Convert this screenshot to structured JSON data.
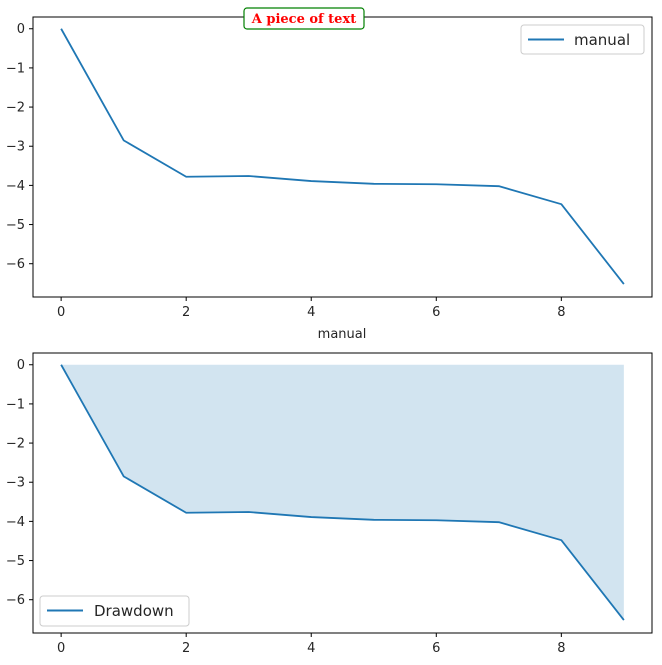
{
  "chart_data": [
    {
      "type": "line",
      "x": [
        0,
        1,
        2,
        3,
        4,
        5,
        6,
        7,
        8,
        9
      ],
      "series": [
        {
          "name": "manual",
          "values": [
            0,
            -2.85,
            -3.78,
            -3.76,
            -3.89,
            -3.96,
            -3.97,
            -4.02,
            -4.48,
            -6.52
          ],
          "color": "#1f77b4"
        }
      ],
      "xlabel": "manual",
      "ylabel": "",
      "xlim": [
        -0.45,
        9.45
      ],
      "ylim": [
        -6.85,
        0.3
      ],
      "xticks": [
        0,
        2,
        4,
        6,
        8
      ],
      "yticks": [
        0,
        -1,
        -2,
        -3,
        -4,
        -5,
        -6
      ],
      "xtick_labels": [
        "0",
        "2",
        "4",
        "6",
        "8"
      ],
      "ytick_labels": [
        "0",
        "−1",
        "−2",
        "−3",
        "−4",
        "−5",
        "−6"
      ],
      "grid": false,
      "legend": {
        "entries": [
          "manual"
        ],
        "placement": "top-right"
      },
      "annotation": {
        "text": "A piece of text",
        "text_color": "#ff0000",
        "box_edge_color": "#008000"
      }
    },
    {
      "type": "area",
      "x": [
        0,
        1,
        2,
        3,
        4,
        5,
        6,
        7,
        8,
        9
      ],
      "series": [
        {
          "name": "Drawdown",
          "values": [
            0,
            -2.85,
            -3.78,
            -3.76,
            -3.89,
            -3.96,
            -3.97,
            -4.02,
            -4.48,
            -6.52
          ],
          "color": "#1f77b4",
          "fill_color": "#1f77b4",
          "fill_opacity": 0.2
        }
      ],
      "xlabel": "",
      "ylabel": "",
      "xlim": [
        -0.45,
        9.45
      ],
      "ylim": [
        -6.85,
        0.3
      ],
      "xticks": [
        0,
        2,
        4,
        6,
        8
      ],
      "yticks": [
        0,
        -1,
        -2,
        -3,
        -4,
        -5,
        -6
      ],
      "xtick_labels": [
        "0",
        "2",
        "4",
        "6",
        "8"
      ],
      "ytick_labels": [
        "0",
        "−1",
        "−2",
        "−3",
        "−4",
        "−5",
        "−6"
      ],
      "grid": false,
      "legend": {
        "entries": [
          "Drawdown"
        ],
        "placement": "bottom-left"
      }
    }
  ]
}
